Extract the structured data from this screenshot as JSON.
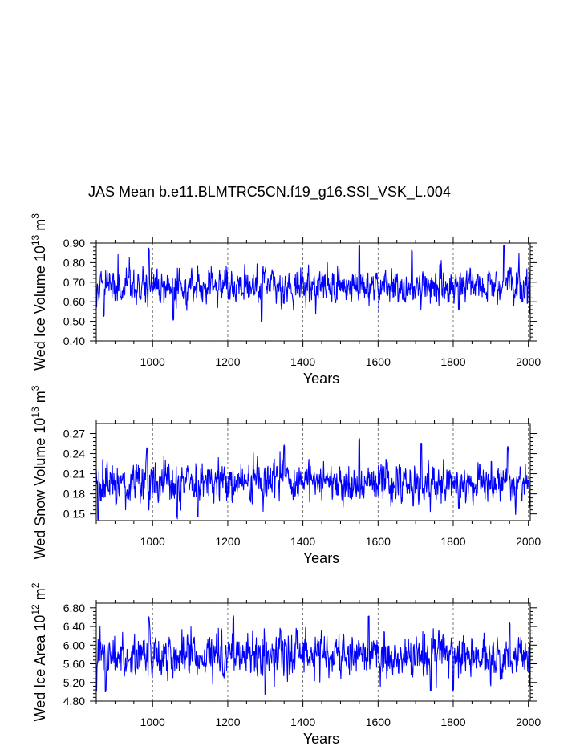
{
  "page": {
    "title": "JAS Mean b.e11.BLMTRC5CN.f19_g16.SSI_VSK_L.004"
  },
  "colors": {
    "series": "#0000ff",
    "axis": "#000000",
    "gridline": "#555555"
  },
  "chart_data": [
    {
      "type": "line",
      "ylabel": "Wed Ice Volume 10^13 m^3",
      "ylabel_base": "Wed Ice Volume 10",
      "ylabel_exp": "13",
      "ylabel_unit": "m",
      "ylabel_unit_exp": "3",
      "xlabel": "Years",
      "xlim": [
        850,
        2005
      ],
      "ylim": [
        0.4,
        0.9
      ],
      "xticks": [
        1000,
        1200,
        1400,
        1600,
        1800,
        2000
      ],
      "xtick_labels": [
        "1000",
        "1200",
        "1400",
        "1600",
        "1800",
        "2000"
      ],
      "yticks": [
        0.4,
        0.5,
        0.6,
        0.7,
        0.8,
        0.9
      ],
      "ytick_labels": [
        "0.40",
        "0.50",
        "0.60",
        "0.70",
        "0.80",
        "0.90"
      ],
      "vgrid_x": [
        1000,
        1200,
        1400,
        1600,
        1800,
        2000
      ],
      "series": [
        {
          "name": "Wed Ice Volume",
          "color": "#0000ff",
          "x_start": 850,
          "x_end": 2005,
          "mean": 0.68,
          "std": 0.045,
          "seed": 11,
          "events": [
            [
              850,
              0.57
            ],
            [
              870,
              0.53
            ],
            [
              990,
              0.87
            ],
            [
              1055,
              0.51
            ],
            [
              1290,
              0.5
            ],
            [
              1550,
              0.89
            ],
            [
              1690,
              0.86
            ],
            [
              1815,
              0.56
            ],
            [
              1935,
              0.88
            ],
            [
              2005,
              0.54
            ]
          ]
        }
      ]
    },
    {
      "type": "line",
      "ylabel": "Wed Snow Volume 10^13 m^3",
      "ylabel_base": "Wed Snow Volume 10",
      "ylabel_exp": "13",
      "ylabel_unit": "m",
      "ylabel_unit_exp": "3",
      "xlabel": "Years",
      "xlim": [
        850,
        2005
      ],
      "ylim": [
        0.14,
        0.285
      ],
      "xticks": [
        1000,
        1200,
        1400,
        1600,
        1800,
        2000
      ],
      "xtick_labels": [
        "1000",
        "1200",
        "1400",
        "1600",
        "1800",
        "2000"
      ],
      "yticks": [
        0.15,
        0.18,
        0.21,
        0.24,
        0.27
      ],
      "ytick_labels": [
        "0.15",
        "0.18",
        "0.21",
        "0.24",
        "0.27"
      ],
      "vgrid_x": [
        1000,
        1200,
        1400,
        1600,
        1800,
        2000
      ],
      "series": [
        {
          "name": "Wed Snow Volume",
          "color": "#0000ff",
          "x_start": 850,
          "x_end": 2005,
          "mean": 0.197,
          "std": 0.015,
          "seed": 29,
          "events": [
            [
              855,
              0.14
            ],
            [
              985,
              0.247
            ],
            [
              1065,
              0.145
            ],
            [
              1120,
              0.148
            ],
            [
              1350,
              0.252
            ],
            [
              1550,
              0.262
            ],
            [
              1715,
              0.255
            ],
            [
              1815,
              0.158
            ],
            [
              1945,
              0.25
            ],
            [
              2005,
              0.16
            ]
          ]
        }
      ]
    },
    {
      "type": "line",
      "ylabel": "Wed Ice Area 10^12 m^2",
      "ylabel_base": "Wed Ice Area 10",
      "ylabel_exp": "12",
      "ylabel_unit": "m",
      "ylabel_unit_exp": "2",
      "xlabel": "Years",
      "xlim": [
        850,
        2005
      ],
      "ylim": [
        4.8,
        6.9
      ],
      "xticks": [
        1000,
        1200,
        1400,
        1600,
        1800,
        2000
      ],
      "xtick_labels": [
        "1000",
        "1200",
        "1400",
        "1600",
        "1800",
        "2000"
      ],
      "yticks": [
        4.8,
        5.2,
        5.6,
        6.0,
        6.4,
        6.8
      ],
      "ytick_labels": [
        "4.80",
        "5.20",
        "5.60",
        "6.00",
        "6.40",
        "6.80"
      ],
      "vgrid_x": [
        1000,
        1200,
        1400,
        1600,
        1800,
        2000
      ],
      "series": [
        {
          "name": "Wed Ice Area",
          "color": "#0000ff",
          "x_start": 850,
          "x_end": 2005,
          "mean": 5.78,
          "std": 0.22,
          "seed": 47,
          "events": [
            [
              875,
              5.02
            ],
            [
              990,
              6.58
            ],
            [
              1215,
              6.62
            ],
            [
              1300,
              4.97
            ],
            [
              1575,
              6.65
            ],
            [
              1740,
              5.05
            ],
            [
              1800,
              5.05
            ],
            [
              1950,
              6.48
            ],
            [
              2005,
              5.12
            ]
          ]
        }
      ]
    }
  ]
}
